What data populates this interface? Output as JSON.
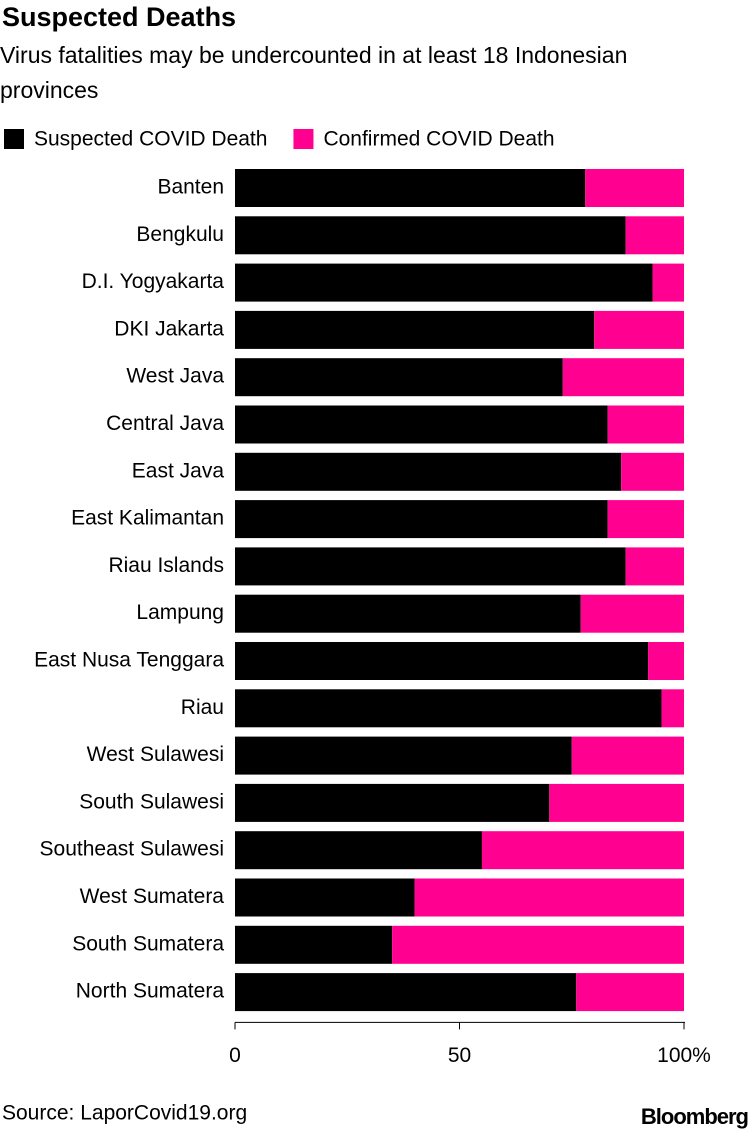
{
  "chart_data": {
    "type": "stacked-bar-horizontal",
    "title": "Suspected Deaths",
    "subtitle": "Virus fatalities may be undercounted in at least 18 Indonesian provinces",
    "categories": [
      "Banten",
      "Bengkulu",
      "D.I. Yogyakarta",
      "DKI Jakarta",
      "West Java",
      "Central Java",
      "East Java",
      "East Kalimantan",
      "Riau Islands",
      "Lampung",
      "East Nusa Tenggara",
      "Riau",
      "West Sulawesi",
      "South Sulawesi",
      "Southeast Sulawesi",
      "West Sumatera",
      "South Sumatera",
      "North Sumatera"
    ],
    "series": [
      {
        "name": "Suspected COVID Death",
        "color": "#000000",
        "values": [
          78,
          87,
          93,
          80,
          73,
          83,
          86,
          83,
          87,
          77,
          92,
          95,
          75,
          70,
          55,
          40,
          35,
          76
        ]
      },
      {
        "name": "Confirmed COVID Death",
        "color": "#ff0090",
        "values": [
          22,
          13,
          7,
          20,
          27,
          17,
          14,
          17,
          13,
          23,
          8,
          5,
          25,
          30,
          45,
          60,
          65,
          24
        ]
      }
    ],
    "xlim": [
      0,
      100
    ],
    "xticks": [
      0,
      50,
      {
        "value": 100,
        "label": "100%"
      }
    ],
    "source": "Source: LaporCovid19.org",
    "brand": "Bloomberg"
  }
}
